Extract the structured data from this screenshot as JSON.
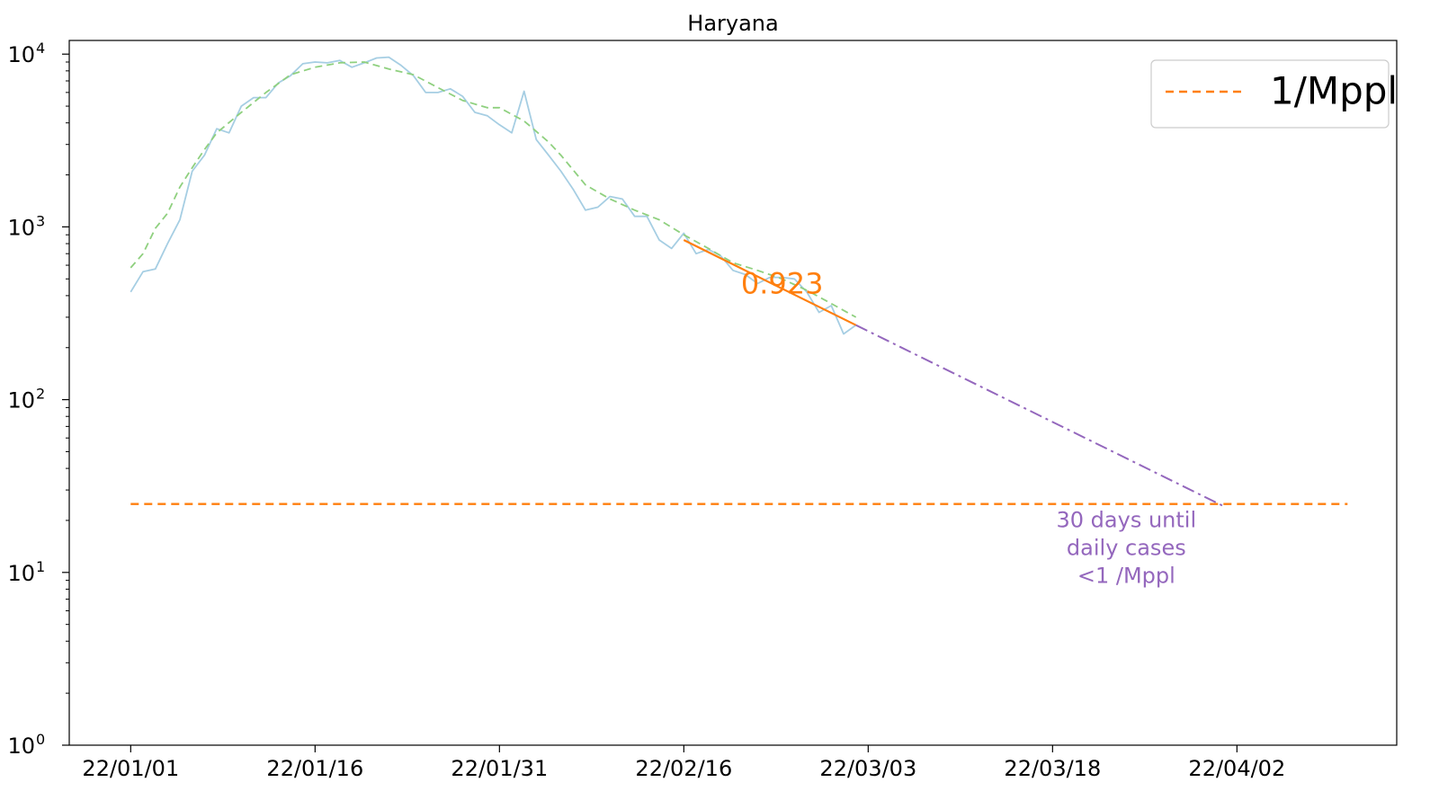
{
  "chart_data": {
    "type": "line",
    "title": "Haryana",
    "xlabel": "",
    "ylabel": "",
    "y_scale": "log",
    "ylim": [
      1,
      12000
    ],
    "xlim": [
      "2021-12-27",
      "2022-04-14"
    ],
    "x_ticks": [
      "2022-01-01",
      "2022-01-16",
      "2022-01-31",
      "2022-02-15",
      "2022-03-02",
      "2022-03-17",
      "2022-04-01"
    ],
    "x_tick_labels": [
      "22/01/01",
      "22/01/16",
      "22/01/31",
      "22/02/16",
      "22/03/03",
      "22/03/18",
      "22/04/02"
    ],
    "y_ticks": [
      1,
      10,
      100,
      1000,
      10000
    ],
    "y_tick_bases": [
      "10",
      "10",
      "10",
      "10",
      "10"
    ],
    "y_tick_exponents": [
      "0",
      "1",
      "2",
      "3",
      "4"
    ],
    "grid": false,
    "legend_position": "top-right",
    "series": [
      {
        "role": "daily",
        "color": "#a6cee3",
        "style": "solid",
        "x": [
          "2022-01-01",
          "2022-01-02",
          "2022-01-03",
          "2022-01-04",
          "2022-01-05",
          "2022-01-06",
          "2022-01-07",
          "2022-01-08",
          "2022-01-09",
          "2022-01-10",
          "2022-01-11",
          "2022-01-12",
          "2022-01-13",
          "2022-01-14",
          "2022-01-15",
          "2022-01-16",
          "2022-01-17",
          "2022-01-18",
          "2022-01-19",
          "2022-01-20",
          "2022-01-21",
          "2022-01-22",
          "2022-01-23",
          "2022-01-24",
          "2022-01-25",
          "2022-01-26",
          "2022-01-27",
          "2022-01-28",
          "2022-01-29",
          "2022-01-30",
          "2022-01-31",
          "2022-02-01",
          "2022-02-02",
          "2022-02-03",
          "2022-02-04",
          "2022-02-05",
          "2022-02-06",
          "2022-02-07",
          "2022-02-08",
          "2022-02-09",
          "2022-02-10",
          "2022-02-11",
          "2022-02-12",
          "2022-02-13",
          "2022-02-14",
          "2022-02-15",
          "2022-02-16",
          "2022-02-17",
          "2022-02-18",
          "2022-02-19",
          "2022-02-20",
          "2022-02-21",
          "2022-02-22",
          "2022-02-23",
          "2022-02-24",
          "2022-02-25",
          "2022-02-26",
          "2022-02-27",
          "2022-02-28",
          "2022-03-01"
        ],
        "y": [
          420,
          550,
          570,
          800,
          1100,
          2100,
          2600,
          3700,
          3500,
          5000,
          5600,
          5600,
          6800,
          7500,
          8800,
          9000,
          8900,
          9200,
          8400,
          8900,
          9500,
          9600,
          8600,
          7500,
          6000,
          6000,
          6300,
          5700,
          4600,
          4400,
          3900,
          3500,
          6100,
          3200,
          2600,
          2100,
          1650,
          1250,
          1300,
          1500,
          1450,
          1150,
          1150,
          840,
          750,
          920,
          700,
          740,
          680,
          560,
          530,
          470,
          510,
          510,
          500,
          420,
          320,
          350,
          240,
          270
        ]
      },
      {
        "role": "smoothed",
        "color": "#8fd07f",
        "style": "dashed",
        "x": [
          "2022-01-01",
          "2022-01-02",
          "2022-01-03",
          "2022-01-04",
          "2022-01-05",
          "2022-01-06",
          "2022-01-07",
          "2022-01-08",
          "2022-01-10",
          "2022-01-12",
          "2022-01-14",
          "2022-01-16",
          "2022-01-18",
          "2022-01-20",
          "2022-01-22",
          "2022-01-24",
          "2022-01-26",
          "2022-01-28",
          "2022-01-30",
          "2022-01-31",
          "2022-02-02",
          "2022-02-04",
          "2022-02-05",
          "2022-02-07",
          "2022-02-09",
          "2022-02-11",
          "2022-02-13",
          "2022-02-15",
          "2022-02-17",
          "2022-02-19",
          "2022-02-21",
          "2022-02-23",
          "2022-02-25",
          "2022-02-27",
          "2022-03-01"
        ],
        "y": [
          580,
          700,
          980,
          1200,
          1700,
          2200,
          2800,
          3500,
          4600,
          6000,
          7600,
          8400,
          8900,
          9000,
          8200,
          7600,
          6400,
          5400,
          4900,
          4900,
          4100,
          3100,
          2600,
          1750,
          1450,
          1250,
          1100,
          900,
          750,
          620,
          560,
          500,
          430,
          360,
          300
        ]
      },
      {
        "role": "fit",
        "color": "#ff7f0e",
        "style": "solid",
        "x": [
          "2022-02-15",
          "2022-03-01"
        ],
        "y": [
          840,
          270
        ]
      },
      {
        "role": "projection",
        "color": "#9467bd",
        "style": "dashdot",
        "x": [
          "2022-03-01",
          "2022-03-31"
        ],
        "y": [
          270,
          24
        ]
      },
      {
        "role": "threshold",
        "name": "1/Mppl",
        "color": "#ff7f0e",
        "style": "dashed",
        "x": [
          "2022-01-01",
          "2022-04-10"
        ],
        "y": [
          24.9,
          24.9
        ]
      }
    ],
    "annotations": [
      {
        "text": "0.923",
        "x": "2022-02-23",
        "y": 470,
        "color": "#ff7f0e"
      },
      {
        "lines": [
          "30 days until",
          "daily cases",
          "<1 /Mppl"
        ],
        "x": "2022-03-23",
        "y": 24,
        "color": "#9467bd"
      }
    ]
  }
}
